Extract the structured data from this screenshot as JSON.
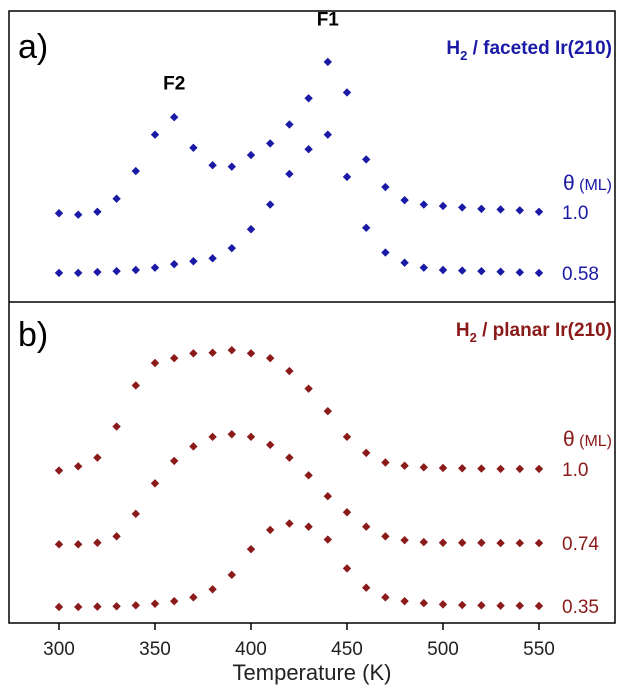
{
  "chart_data": {
    "type": "scatter",
    "xlabel": "Temperature (K)",
    "xlim": [
      290,
      600
    ],
    "xticks": [
      "300",
      "350",
      "400",
      "450",
      "500",
      "550"
    ],
    "xtick_values": [
      300,
      350,
      400,
      450,
      500,
      550
    ],
    "grid": false,
    "panels": [
      {
        "label": "a)",
        "title_prefix": "H",
        "title_sub": "2",
        "title_suffix": " / faceted Ir(210)",
        "color": "#1a1aa6",
        "coverage_header_symbol": "θ",
        "coverage_header_unit": " (ML)",
        "ylim": [
          0,
          1
        ],
        "peak_labels": [
          {
            "text": "F1",
            "x": 440,
            "y": 0.95
          },
          {
            "text": "F2",
            "x": 360,
            "y": 0.73
          }
        ],
        "series": [
          {
            "coverage": "1.0",
            "x": [
              300,
              310,
              320,
              330,
              340,
              350,
              360,
              370,
              380,
              390,
              400,
              410,
              420,
              430,
              440,
              450,
              460,
              470,
              480,
              490,
              500,
              510,
              520,
              530,
              540,
              550
            ],
            "y": [
              0.305,
              0.3,
              0.31,
              0.355,
              0.45,
              0.575,
              0.635,
              0.53,
              0.47,
              0.465,
              0.505,
              0.545,
              0.61,
              0.7,
              0.825,
              0.72,
              0.49,
              0.395,
              0.35,
              0.335,
              0.33,
              0.325,
              0.32,
              0.318,
              0.315,
              0.31
            ]
          },
          {
            "coverage": "0.58",
            "x": [
              300,
              310,
              320,
              330,
              340,
              350,
              360,
              370,
              380,
              390,
              400,
              410,
              420,
              430,
              440,
              450,
              460,
              470,
              480,
              490,
              500,
              510,
              520,
              530,
              540,
              550
            ],
            "y": [
              0.1,
              0.1,
              0.103,
              0.106,
              0.11,
              0.118,
              0.13,
              0.14,
              0.15,
              0.185,
              0.25,
              0.335,
              0.44,
              0.525,
              0.575,
              0.43,
              0.255,
              0.17,
              0.135,
              0.118,
              0.11,
              0.108,
              0.106,
              0.104,
              0.102,
              0.1
            ]
          }
        ]
      },
      {
        "label": "b)",
        "title_prefix": "H",
        "title_sub": "2",
        "title_suffix": " / planar Ir(210)",
        "color": "#8b1a1a",
        "coverage_header_symbol": "θ",
        "coverage_header_unit": " (ML)",
        "ylim": [
          0,
          1
        ],
        "peak_labels": [],
        "series": [
          {
            "coverage": "1.0",
            "x": [
              300,
              310,
              320,
              330,
              340,
              350,
              360,
              370,
              380,
              390,
              400,
              410,
              420,
              430,
              440,
              450,
              460,
              470,
              480,
              490,
              500,
              510,
              520,
              530,
              540,
              550
            ],
            "y": [
              0.475,
              0.488,
              0.515,
              0.612,
              0.74,
              0.81,
              0.825,
              0.84,
              0.842,
              0.85,
              0.84,
              0.825,
              0.785,
              0.73,
              0.66,
              0.58,
              0.53,
              0.5,
              0.49,
              0.485,
              0.483,
              0.482,
              0.481,
              0.48,
              0.48,
              0.48
            ]
          },
          {
            "coverage": "0.74",
            "x": [
              300,
              310,
              320,
              330,
              340,
              350,
              360,
              370,
              380,
              390,
              400,
              410,
              420,
              430,
              440,
              450,
              460,
              470,
              480,
              490,
              500,
              510,
              520,
              530,
              540,
              550
            ],
            "y": [
              0.245,
              0.245,
              0.25,
              0.27,
              0.34,
              0.435,
              0.505,
              0.55,
              0.58,
              0.588,
              0.58,
              0.555,
              0.515,
              0.46,
              0.395,
              0.345,
              0.3,
              0.27,
              0.258,
              0.252,
              0.25,
              0.25,
              0.25,
              0.249,
              0.249,
              0.249
            ]
          },
          {
            "coverage": "0.35",
            "x": [
              300,
              310,
              320,
              330,
              340,
              350,
              360,
              370,
              380,
              390,
              400,
              410,
              420,
              430,
              440,
              450,
              460,
              470,
              480,
              490,
              500,
              510,
              520,
              530,
              540,
              550
            ],
            "y": [
              0.05,
              0.05,
              0.051,
              0.052,
              0.055,
              0.06,
              0.068,
              0.08,
              0.105,
              0.15,
              0.23,
              0.29,
              0.31,
              0.3,
              0.26,
              0.17,
              0.11,
              0.08,
              0.068,
              0.062,
              0.058,
              0.056,
              0.055,
              0.054,
              0.054,
              0.053
            ]
          }
        ]
      }
    ]
  }
}
